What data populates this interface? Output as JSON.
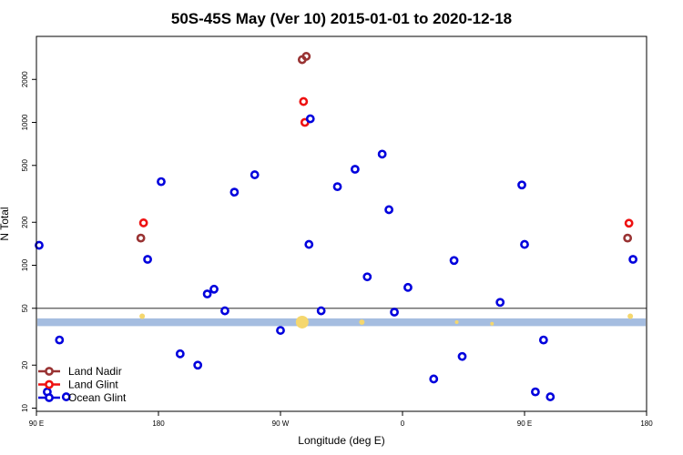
{
  "chart_data": {
    "type": "scatter",
    "title": "50S-45S May (Ver 10)   2015-01-01 to 2020-12-18",
    "xlabel": "Longitude (deg E)",
    "ylabel": "N Total",
    "x_axis": {
      "range": [
        90,
        540
      ],
      "ticks": [
        {
          "value": 90,
          "label": "90 E"
        },
        {
          "value": 180,
          "label": "180"
        },
        {
          "value": 270,
          "label": "90 W"
        },
        {
          "value": 360,
          "label": "0"
        },
        {
          "value": 450,
          "label": "90 E"
        },
        {
          "value": 540,
          "label": "180"
        }
      ]
    },
    "y_axis": {
      "scale": "log",
      "range": [
        9.5,
        4000
      ],
      "ticks": [
        {
          "value": 10,
          "label": "10"
        },
        {
          "value": 20,
          "label": "20"
        },
        {
          "value": 50,
          "label": "50"
        },
        {
          "value": 100,
          "label": "100"
        },
        {
          "value": 200,
          "label": "200"
        },
        {
          "value": 500,
          "label": "500"
        },
        {
          "value": 1000,
          "label": "1000"
        },
        {
          "value": 2000,
          "label": "2000"
        }
      ]
    },
    "reference_line": {
      "y": 50,
      "color": "#555555"
    },
    "band": {
      "y_range": [
        37.5,
        42.5
      ],
      "color": "#a5bde0"
    },
    "band_markers": [
      {
        "x": 168,
        "y": 44,
        "size": 3,
        "color": "#f5d76e"
      },
      {
        "x": 286,
        "y": 40,
        "size": 7,
        "color": "#f5d76e"
      },
      {
        "x": 330,
        "y": 40,
        "size": 3,
        "color": "#f5d76e"
      },
      {
        "x": 400,
        "y": 40,
        "size": 2,
        "color": "#f5d76e"
      },
      {
        "x": 426,
        "y": 39,
        "size": 2,
        "color": "#f5d76e"
      },
      {
        "x": 528,
        "y": 44,
        "size": 3,
        "color": "#f5d76e"
      }
    ],
    "series": [
      {
        "name": "Land Nadir",
        "color": "#993333",
        "points": [
          {
            "x": 167,
            "y": 155
          },
          {
            "x": 286,
            "y": 2750
          },
          {
            "x": 289,
            "y": 2900
          },
          {
            "x": 526,
            "y": 155
          }
        ]
      },
      {
        "name": "Land Glint",
        "color": "#ee1111",
        "points": [
          {
            "x": 169,
            "y": 198
          },
          {
            "x": 287,
            "y": 1400
          },
          {
            "x": 288,
            "y": 1000
          },
          {
            "x": 527,
            "y": 197
          }
        ]
      },
      {
        "name": "Ocean Glint",
        "color": "#0000dd",
        "points": [
          {
            "x": 92,
            "y": 138
          },
          {
            "x": 107,
            "y": 30
          },
          {
            "x": 98,
            "y": 13
          },
          {
            "x": 112,
            "y": 12
          },
          {
            "x": 172,
            "y": 110
          },
          {
            "x": 182,
            "y": 385
          },
          {
            "x": 196,
            "y": 24
          },
          {
            "x": 209,
            "y": 20
          },
          {
            "x": 216,
            "y": 63
          },
          {
            "x": 221,
            "y": 68
          },
          {
            "x": 229,
            "y": 48
          },
          {
            "x": 236,
            "y": 325
          },
          {
            "x": 251,
            "y": 430
          },
          {
            "x": 270,
            "y": 35
          },
          {
            "x": 292,
            "y": 1060
          },
          {
            "x": 291,
            "y": 140
          },
          {
            "x": 300,
            "y": 48
          },
          {
            "x": 312,
            "y": 355
          },
          {
            "x": 325,
            "y": 470
          },
          {
            "x": 334,
            "y": 83
          },
          {
            "x": 345,
            "y": 600
          },
          {
            "x": 350,
            "y": 245
          },
          {
            "x": 354,
            "y": 47
          },
          {
            "x": 364,
            "y": 70
          },
          {
            "x": 383,
            "y": 16
          },
          {
            "x": 398,
            "y": 108
          },
          {
            "x": 404,
            "y": 23
          },
          {
            "x": 432,
            "y": 55
          },
          {
            "x": 448,
            "y": 365
          },
          {
            "x": 450,
            "y": 140
          },
          {
            "x": 458,
            "y": 13
          },
          {
            "x": 464,
            "y": 30
          },
          {
            "x": 469,
            "y": 12
          },
          {
            "x": 530,
            "y": 110
          }
        ]
      }
    ],
    "legend": {
      "position": "bottom-left"
    }
  }
}
